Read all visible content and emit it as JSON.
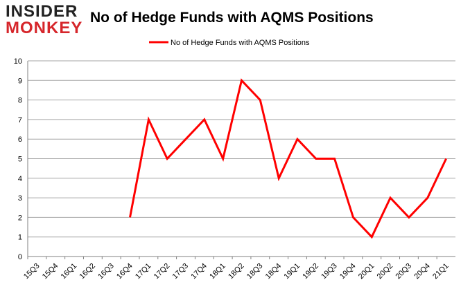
{
  "logo": {
    "line1": "INSIDER",
    "line2": "MONKEY"
  },
  "title": "No of Hedge Funds with AQMS Positions",
  "colors": {
    "series": "#ff0000",
    "grid": "#a6a6a6",
    "axis": "#808080"
  },
  "chart_data": {
    "type": "line",
    "title": "No of Hedge Funds with AQMS Positions",
    "xlabel": "",
    "ylabel": "",
    "ylim": [
      0,
      10
    ],
    "yticks": [
      0,
      1,
      2,
      3,
      4,
      5,
      6,
      7,
      8,
      9,
      10
    ],
    "grid": true,
    "legend_position": "top",
    "categories": [
      "15Q3",
      "15Q4",
      "16Q1",
      "16Q2",
      "16Q3",
      "16Q4",
      "17Q1",
      "17Q2",
      "17Q3",
      "17Q4",
      "18Q1",
      "18Q2",
      "18Q3",
      "18Q4",
      "19Q1",
      "19Q2",
      "19Q3",
      "19Q4",
      "20Q1",
      "20Q2",
      "20Q3",
      "20Q4",
      "21Q1"
    ],
    "series": [
      {
        "name": "No of Hedge Funds with AQMS Positions",
        "values": [
          null,
          null,
          null,
          null,
          null,
          2,
          7,
          5,
          6,
          7,
          5,
          9,
          8,
          4,
          6,
          5,
          5,
          2,
          1,
          3,
          2,
          3,
          5
        ]
      }
    ]
  }
}
